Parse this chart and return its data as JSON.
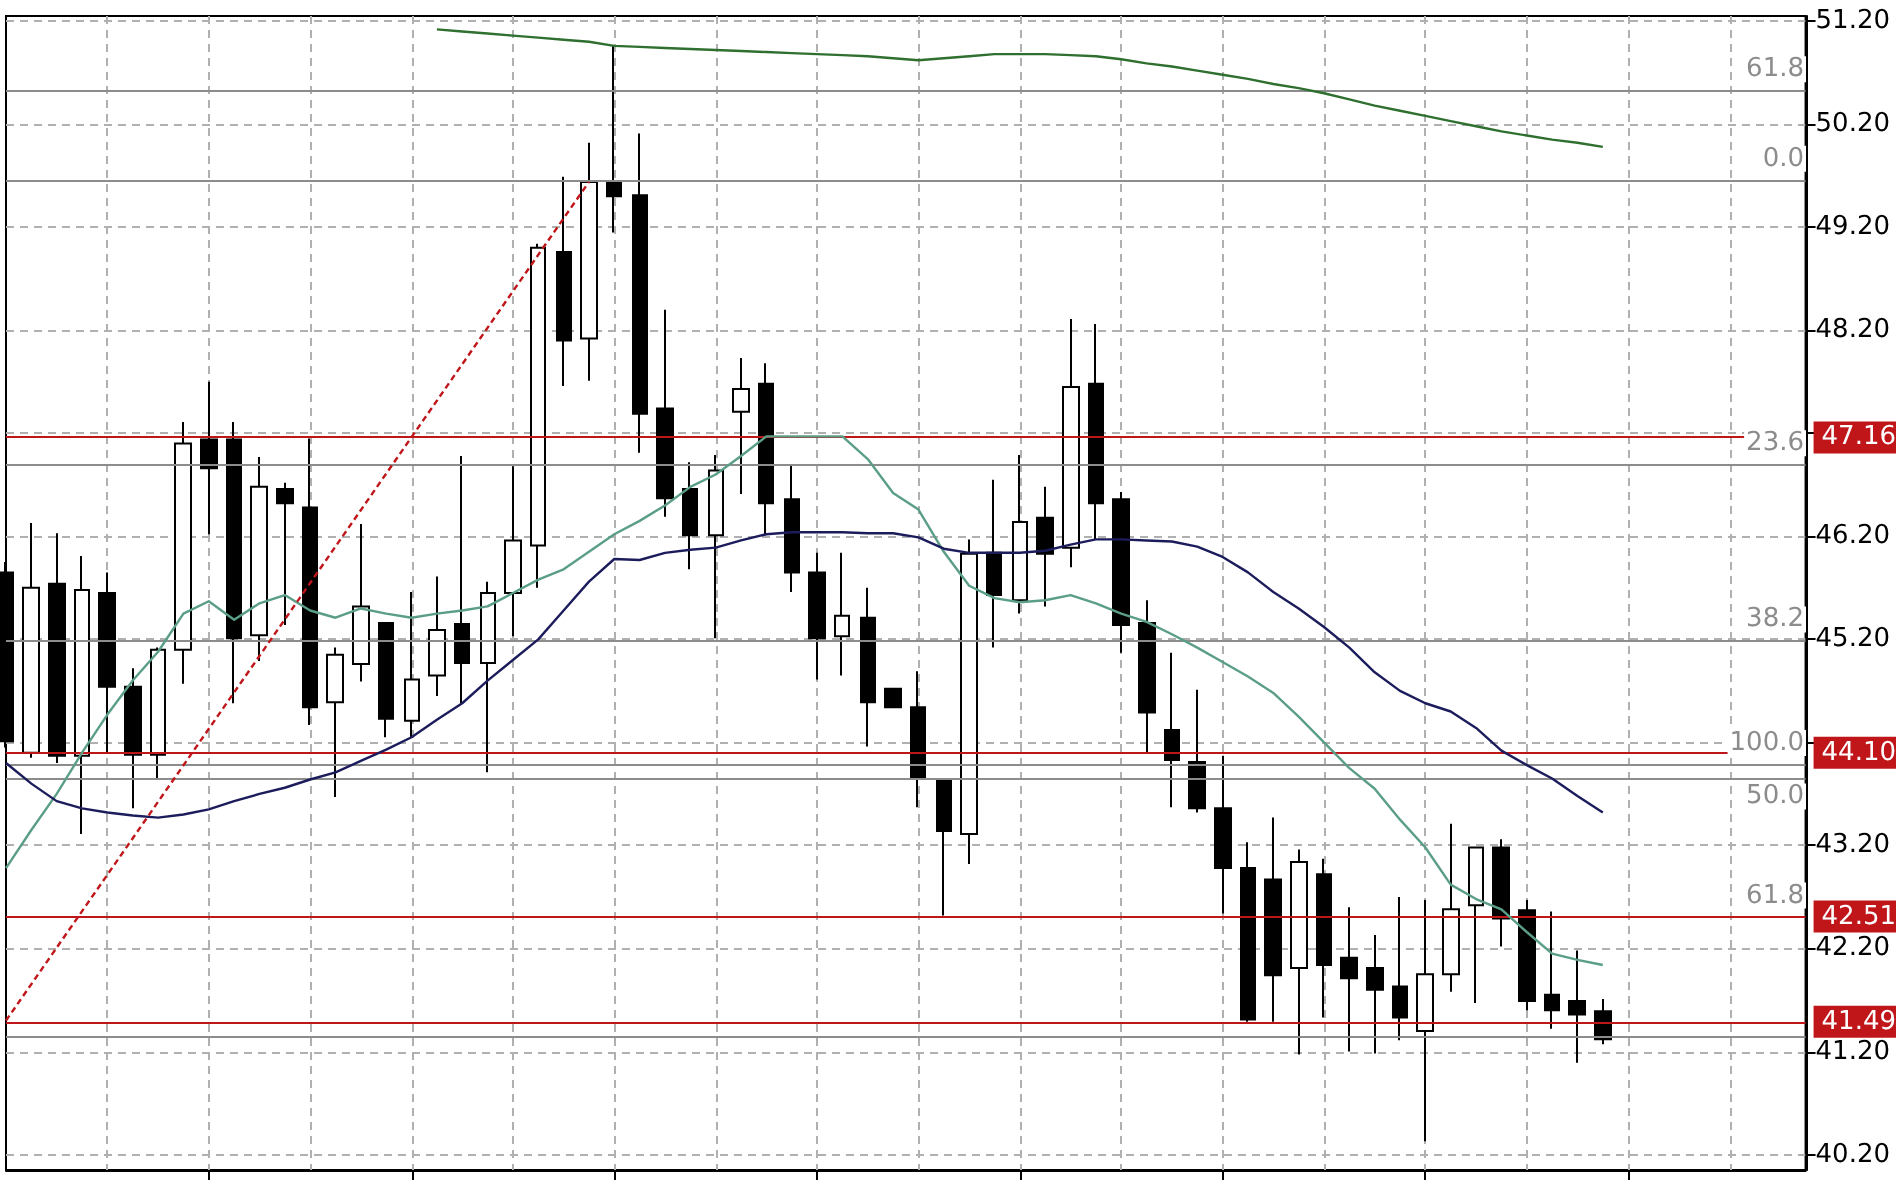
{
  "chart_data": {
    "type": "candlestick",
    "categories": [
      null,
      null,
      null,
      null,
      null,
      null,
      null,
      null,
      null,
      null,
      null,
      null,
      null,
      null,
      null,
      null,
      null,
      null,
      null,
      null,
      null,
      null,
      null,
      null,
      null,
      null,
      null,
      null,
      null,
      null,
      null,
      null,
      null,
      null,
      null,
      null,
      null,
      null,
      null,
      null,
      null,
      null,
      null,
      null,
      null,
      null,
      null,
      null,
      null,
      null,
      null,
      null,
      null,
      null,
      null,
      null,
      null,
      null,
      null,
      null,
      null,
      null,
      null,
      null,
      null,
      null,
      null,
      null,
      null,
      null,
      null,
      null
    ],
    "ylim": [
      40.05,
      51.25
    ],
    "yticks": [
      {
        "value": 40.2,
        "label": "40.20"
      },
      {
        "value": 41.2,
        "label": "41.20"
      },
      {
        "value": 42.2,
        "label": "42.20"
      },
      {
        "value": 43.2,
        "label": "43.20"
      },
      {
        "value": 44.2,
        "label": null
      },
      {
        "value": 45.2,
        "label": "45.20"
      },
      {
        "value": 46.2,
        "label": "46.20"
      },
      {
        "value": 47.2,
        "label": null
      },
      {
        "value": 48.2,
        "label": "48.20"
      },
      {
        "value": 49.2,
        "label": "49.20"
      },
      {
        "value": 50.2,
        "label": "50.20"
      },
      {
        "value": 51.2,
        "label": "51.20"
      }
    ],
    "tick_labels": "y",
    "grid": true,
    "marker": "none",
    "series": [
      {
        "color": "#000000",
        "ohlc": [
          [
            45.85,
            45.95,
            44.15,
            44.21
          ],
          [
            44.1,
            46.33,
            44.05,
            45.7
          ],
          [
            45.74,
            46.23,
            44.0,
            44.07
          ],
          [
            44.07,
            46.01,
            43.31,
            45.68
          ],
          [
            45.65,
            45.85,
            44.1,
            44.74
          ],
          [
            44.74,
            44.92,
            43.56,
            44.08
          ],
          [
            44.08,
            45.12,
            43.85,
            45.1
          ],
          [
            45.1,
            47.31,
            44.77,
            47.1
          ],
          [
            47.14,
            47.7,
            46.22,
            46.86
          ],
          [
            47.14,
            47.31,
            44.58,
            45.21
          ],
          [
            45.24,
            46.97,
            44.99,
            46.68
          ],
          [
            46.66,
            46.72,
            45.34,
            46.52
          ],
          [
            46.48,
            47.15,
            44.37,
            44.54
          ],
          [
            44.59,
            45.12,
            43.67,
            45.05
          ],
          [
            44.96,
            46.32,
            44.79,
            45.52
          ],
          [
            45.36,
            45.36,
            44.25,
            44.43
          ],
          [
            44.41,
            45.66,
            44.25,
            44.81
          ],
          [
            44.85,
            45.81,
            44.65,
            45.29
          ],
          [
            45.35,
            46.98,
            44.58,
            44.97
          ],
          [
            44.97,
            45.76,
            43.91,
            45.65
          ],
          [
            45.65,
            46.88,
            45.23,
            46.16
          ],
          [
            46.11,
            49.04,
            45.7,
            49.0
          ],
          [
            48.96,
            49.69,
            47.66,
            48.1
          ],
          [
            48.12,
            50.02,
            47.71,
            49.64
          ],
          [
            49.64,
            50.96,
            49.15,
            49.5
          ],
          [
            49.51,
            50.11,
            47.01,
            47.39
          ],
          [
            47.44,
            48.4,
            46.39,
            46.57
          ],
          [
            46.66,
            46.92,
            45.88,
            46.21
          ],
          [
            46.21,
            46.99,
            45.21,
            46.84
          ],
          [
            47.41,
            47.93,
            46.61,
            47.63
          ],
          [
            47.68,
            47.88,
            46.21,
            46.52
          ],
          [
            46.56,
            46.9,
            45.66,
            45.85
          ],
          [
            45.85,
            46.04,
            44.81,
            45.21
          ],
          [
            45.23,
            46.04,
            44.85,
            45.43
          ],
          [
            45.41,
            45.7,
            44.16,
            44.59
          ],
          [
            44.72,
            44.72,
            44.54,
            44.54
          ],
          [
            44.54,
            44.89,
            43.57,
            43.85
          ],
          [
            43.84,
            43.84,
            42.52,
            43.34
          ],
          [
            43.31,
            46.17,
            43.02,
            46.03
          ],
          [
            46.04,
            46.75,
            45.12,
            45.63
          ],
          [
            45.58,
            46.99,
            45.45,
            46.34
          ],
          [
            46.38,
            46.68,
            45.52,
            46.03
          ],
          [
            46.09,
            48.31,
            45.9,
            47.65
          ],
          [
            47.68,
            48.26,
            46.17,
            46.52
          ],
          [
            46.56,
            46.63,
            45.07,
            45.34
          ],
          [
            45.36,
            45.58,
            44.1,
            44.49
          ],
          [
            44.32,
            45.07,
            43.57,
            44.03
          ],
          [
            44.01,
            44.71,
            43.52,
            43.56
          ],
          [
            43.56,
            44.07,
            42.54,
            42.98
          ],
          [
            42.98,
            43.23,
            41.49,
            41.51
          ],
          [
            42.87,
            43.47,
            41.49,
            41.94
          ],
          [
            42.01,
            43.16,
            41.17,
            43.04
          ],
          [
            42.92,
            43.07,
            41.53,
            42.04
          ],
          [
            42.11,
            42.6,
            41.2,
            41.91
          ],
          [
            42.01,
            42.33,
            41.18,
            41.8
          ],
          [
            41.83,
            42.7,
            41.31,
            41.53
          ],
          [
            41.4,
            42.67,
            40.33,
            41.95
          ],
          [
            41.95,
            43.41,
            41.78,
            42.58
          ],
          [
            42.62,
            43.18,
            41.67,
            43.18
          ],
          [
            43.18,
            43.26,
            42.22,
            42.49
          ],
          [
            42.57,
            42.67,
            41.6,
            41.69
          ],
          [
            41.75,
            42.56,
            41.42,
            41.6
          ],
          [
            41.69,
            42.18,
            41.09,
            41.56
          ],
          [
            41.59,
            41.71,
            41.27,
            41.32
          ],
          null,
          null,
          null,
          null,
          null,
          null,
          null,
          null
        ]
      },
      {
        "type": "line",
        "color": "#2f6f2f",
        "values": [
          null,
          null,
          null,
          null,
          null,
          null,
          null,
          null,
          null,
          null,
          null,
          null,
          null,
          null,
          null,
          null,
          null,
          51.12,
          51.1,
          51.08,
          51.06,
          51.04,
          51.02,
          51.0,
          50.96,
          50.95,
          50.94,
          50.93,
          50.92,
          50.91,
          50.9,
          50.89,
          50.88,
          50.87,
          50.86,
          50.84,
          50.82,
          50.84,
          50.86,
          50.88,
          50.88,
          50.88,
          50.87,
          50.86,
          50.83,
          50.79,
          50.76,
          50.72,
          50.68,
          50.64,
          50.59,
          50.55,
          50.5,
          50.44,
          50.38,
          50.33,
          50.28,
          50.23,
          50.18,
          50.13,
          50.09,
          50.05,
          50.02,
          49.98,
          null,
          null,
          null,
          null,
          null,
          null,
          null,
          null
        ]
      },
      {
        "type": "line",
        "color": "#5b9e86",
        "values": [
          42.98,
          43.35,
          43.7,
          44.1,
          44.47,
          44.8,
          45.08,
          45.45,
          45.57,
          45.39,
          45.55,
          45.63,
          45.48,
          45.41,
          45.5,
          45.45,
          45.41,
          45.45,
          45.48,
          45.52,
          45.65,
          45.78,
          45.88,
          46.05,
          46.22,
          46.35,
          46.5,
          46.68,
          46.8,
          46.98,
          47.17,
          47.17,
          47.17,
          47.17,
          46.95,
          46.62,
          46.46,
          46.05,
          45.72,
          45.6,
          45.56,
          45.58,
          45.63,
          45.55,
          45.45,
          45.37,
          45.25,
          45.12,
          44.98,
          44.84,
          44.68,
          44.45,
          44.2,
          43.95,
          43.75,
          43.45,
          43.18,
          42.82,
          42.68,
          42.58,
          42.36,
          42.15,
          42.09,
          42.04,
          null,
          null,
          null,
          null,
          null,
          null,
          null,
          null
        ]
      },
      {
        "type": "line",
        "color": "#1c1c5c",
        "values": [
          44.0,
          43.8,
          43.63,
          43.56,
          43.52,
          43.49,
          43.47,
          43.5,
          43.55,
          43.63,
          43.7,
          43.76,
          43.84,
          43.91,
          44.02,
          44.13,
          44.25,
          44.42,
          44.58,
          44.8,
          45.0,
          45.2,
          45.48,
          45.76,
          45.98,
          45.97,
          46.04,
          46.07,
          46.09,
          46.16,
          46.22,
          46.24,
          46.24,
          46.24,
          46.23,
          46.23,
          46.19,
          46.08,
          46.04,
          46.04,
          46.04,
          46.06,
          46.12,
          46.17,
          46.17,
          46.16,
          46.15,
          46.1,
          46.0,
          45.85,
          45.66,
          45.5,
          45.32,
          45.12,
          44.88,
          44.7,
          44.58,
          44.5,
          44.34,
          44.12,
          43.98,
          43.85,
          43.68,
          43.52,
          null,
          null,
          null,
          null,
          null,
          null,
          null,
          null
        ]
      },
      {
        "type": "line",
        "color": "#c0161a",
        "line_style": "dashed",
        "values": [
          41.5,
          null,
          null,
          null,
          null,
          null,
          null,
          null,
          null,
          null,
          null,
          null,
          null,
          null,
          null,
          null,
          null,
          null,
          null,
          null,
          null,
          null,
          null,
          49.64,
          null,
          null,
          null,
          null,
          null,
          null,
          null,
          null,
          null,
          null,
          null,
          null,
          null,
          null,
          null,
          null,
          null,
          null,
          null,
          null,
          null,
          null,
          null,
          null,
          null,
          null,
          null,
          null,
          null,
          null,
          null,
          null,
          null,
          null,
          null,
          null,
          null,
          null,
          null,
          null,
          null,
          null,
          null,
          null,
          null,
          null,
          null,
          null
        ]
      }
    ],
    "ref_lines": [
      {
        "axis": "y",
        "value": 50.53,
        "color": "#8c8c8c"
      },
      {
        "axis": "y",
        "value": 49.66,
        "color": "#8c8c8c"
      },
      {
        "axis": "y",
        "value": 46.9,
        "color": "#8c8c8c"
      },
      {
        "axis": "y",
        "value": 45.19,
        "color": "#8c8c8c"
      },
      {
        "axis": "y",
        "value": 43.99,
        "color": "#8c8c8c"
      },
      {
        "axis": "y",
        "value": 43.84,
        "color": "#8c8c8c"
      },
      {
        "axis": "y",
        "value": 41.35,
        "color": "#8c8c8c"
      },
      {
        "axis": "y",
        "value": 47.16,
        "label": "47.16",
        "color": "#c0161a"
      },
      {
        "axis": "y",
        "value": 44.1,
        "label": "44.10",
        "color": "#c0161a"
      },
      {
        "axis": "y",
        "value": 42.51,
        "label": "42.51",
        "color": "#c0161a"
      },
      {
        "axis": "y",
        "value": 41.49,
        "label": "41.49",
        "color": "#c0161a"
      }
    ],
    "annotations": [
      {
        "text": "61.8",
        "y": 50.53
      },
      {
        "text": "0.0",
        "y": 49.66
      },
      {
        "text": "23.6",
        "y": 46.9
      },
      {
        "text": "38.2",
        "y": 45.19
      },
      {
        "text": "100.0",
        "y": 43.99
      },
      {
        "text": "50.0",
        "y": 43.84
      },
      {
        "text": "61.8",
        "y": 42.51
      }
    ]
  }
}
